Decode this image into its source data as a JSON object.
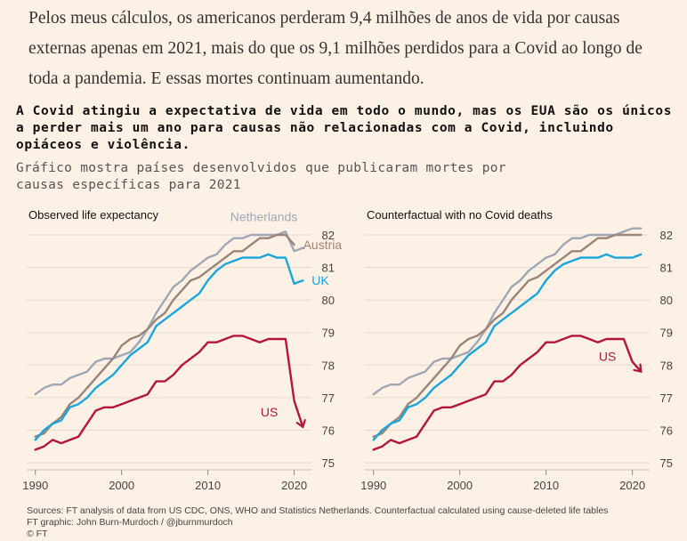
{
  "intro_text": "Pelos meus cálculos, os americanos perderam 9,4 milhões de anos de vida por causas externas apenas em 2021, mais do que os 9,1 milhões perdidos para a Covid ao longo de toda a pandemia. E essas mortes continuam aumentando.",
  "chart_title": "A Covid atingiu a expectativa de vida em todo o mundo, mas os EUA são os únicos a perder mais um ano para causas não relacionadas com a Covid, incluindo opiáceos e violência.",
  "chart_subtitle": "Gráfico mostra países desenvolvidos que publicaram mortes por causas específicas para 2021",
  "footer": {
    "sources": "Sources: FT analysis of data from US CDC, ONS, WHO and Statistics Netherlands. Counterfactual calculated using cause-deleted life tables",
    "graphic": "FT graphic: John Burn-Murdoch / @jburnmurdoch",
    "copyright": "© FT"
  },
  "chart_data": [
    {
      "type": "line",
      "title": "Observed life expectancy",
      "xlim": [
        1989,
        2022
      ],
      "ylim": [
        75,
        82
      ],
      "x_ticks": [
        1990,
        2000,
        2010,
        2020
      ],
      "y_ticks": [
        75,
        76,
        77,
        78,
        79,
        80,
        81,
        82
      ],
      "grid": true,
      "series": [
        {
          "name": "Netherlands",
          "color": "#9fa7b5",
          "label_side": "top",
          "x": [
            1990,
            1991,
            1992,
            1993,
            1994,
            1995,
            1996,
            1997,
            1998,
            1999,
            2000,
            2001,
            2002,
            2003,
            2004,
            2005,
            2006,
            2007,
            2008,
            2009,
            2010,
            2011,
            2012,
            2013,
            2014,
            2015,
            2016,
            2017,
            2018,
            2019,
            2020,
            2021
          ],
          "y": [
            77.1,
            77.3,
            77.4,
            77.4,
            77.6,
            77.7,
            77.8,
            78.1,
            78.2,
            78.2,
            78.3,
            78.4,
            78.7,
            79.1,
            79.6,
            80.0,
            80.4,
            80.6,
            80.9,
            81.1,
            81.3,
            81.4,
            81.7,
            81.9,
            81.9,
            82.0,
            82.0,
            82.0,
            82.0,
            82.1,
            81.5,
            81.6
          ]
        },
        {
          "name": "Austria",
          "color": "#9b8478",
          "label_side": "right",
          "x": [
            1990,
            1991,
            1992,
            1993,
            1994,
            1995,
            1996,
            1997,
            1998,
            1999,
            2000,
            2001,
            2002,
            2003,
            2004,
            2005,
            2006,
            2007,
            2008,
            2009,
            2010,
            2011,
            2012,
            2013,
            2014,
            2015,
            2016,
            2017,
            2018,
            2019,
            2020
          ],
          "y": [
            75.8,
            75.9,
            76.2,
            76.4,
            76.8,
            77.0,
            77.3,
            77.6,
            77.9,
            78.2,
            78.6,
            78.8,
            78.9,
            79.1,
            79.4,
            79.6,
            80.0,
            80.3,
            80.6,
            80.7,
            80.9,
            81.1,
            81.3,
            81.5,
            81.5,
            81.7,
            81.9,
            81.9,
            82.0,
            82.0,
            81.7
          ]
        },
        {
          "name": "UK",
          "color": "#1aa6d9",
          "label_side": "right",
          "x": [
            1990,
            1991,
            1992,
            1993,
            1994,
            1995,
            1996,
            1997,
            1998,
            1999,
            2000,
            2001,
            2002,
            2003,
            2004,
            2005,
            2006,
            2007,
            2008,
            2009,
            2010,
            2011,
            2012,
            2013,
            2014,
            2015,
            2016,
            2017,
            2018,
            2019,
            2020,
            2021
          ],
          "y": [
            75.7,
            76.0,
            76.2,
            76.3,
            76.7,
            76.8,
            77.0,
            77.3,
            77.5,
            77.7,
            78.0,
            78.3,
            78.5,
            78.7,
            79.2,
            79.4,
            79.6,
            79.8,
            80.0,
            80.2,
            80.6,
            80.9,
            81.1,
            81.2,
            81.3,
            81.3,
            81.3,
            81.4,
            81.3,
            81.3,
            80.5,
            80.6
          ]
        },
        {
          "name": "US",
          "color": "#b3163a",
          "label_side": "left",
          "arrow": true,
          "x": [
            1990,
            1991,
            1992,
            1993,
            1994,
            1995,
            1996,
            1997,
            1998,
            1999,
            2000,
            2001,
            2002,
            2003,
            2004,
            2005,
            2006,
            2007,
            2008,
            2009,
            2010,
            2011,
            2012,
            2013,
            2014,
            2015,
            2016,
            2017,
            2018,
            2019,
            2020,
            2021
          ],
          "y": [
            75.4,
            75.5,
            75.7,
            75.6,
            75.7,
            75.8,
            76.2,
            76.6,
            76.7,
            76.7,
            76.8,
            76.9,
            77.0,
            77.1,
            77.5,
            77.5,
            77.7,
            78.0,
            78.2,
            78.4,
            78.7,
            78.7,
            78.8,
            78.9,
            78.9,
            78.8,
            78.7,
            78.8,
            78.8,
            78.8,
            76.9,
            76.1
          ]
        }
      ]
    },
    {
      "type": "line",
      "title": "Counterfactual with no Covid deaths",
      "xlim": [
        1989,
        2022
      ],
      "ylim": [
        75,
        82
      ],
      "x_ticks": [
        1990,
        2000,
        2010,
        2020
      ],
      "y_ticks": [
        75,
        76,
        77,
        78,
        79,
        80,
        81,
        82
      ],
      "grid": true,
      "series": [
        {
          "name": "Netherlands",
          "color": "#9fa7b5",
          "x": [
            1990,
            1991,
            1992,
            1993,
            1994,
            1995,
            1996,
            1997,
            1998,
            1999,
            2000,
            2001,
            2002,
            2003,
            2004,
            2005,
            2006,
            2007,
            2008,
            2009,
            2010,
            2011,
            2012,
            2013,
            2014,
            2015,
            2016,
            2017,
            2018,
            2019,
            2020,
            2021
          ],
          "y": [
            77.1,
            77.3,
            77.4,
            77.4,
            77.6,
            77.7,
            77.8,
            78.1,
            78.2,
            78.2,
            78.3,
            78.4,
            78.7,
            79.1,
            79.6,
            80.0,
            80.4,
            80.6,
            80.9,
            81.1,
            81.3,
            81.4,
            81.7,
            81.9,
            81.9,
            82.0,
            82.0,
            82.0,
            82.0,
            82.1,
            82.2,
            82.2
          ]
        },
        {
          "name": "Austria",
          "color": "#9b8478",
          "x": [
            1990,
            1991,
            1992,
            1993,
            1994,
            1995,
            1996,
            1997,
            1998,
            1999,
            2000,
            2001,
            2002,
            2003,
            2004,
            2005,
            2006,
            2007,
            2008,
            2009,
            2010,
            2011,
            2012,
            2013,
            2014,
            2015,
            2016,
            2017,
            2018,
            2019,
            2020,
            2021
          ],
          "y": [
            75.8,
            75.9,
            76.2,
            76.4,
            76.8,
            77.0,
            77.3,
            77.6,
            77.9,
            78.2,
            78.6,
            78.8,
            78.9,
            79.1,
            79.4,
            79.6,
            80.0,
            80.3,
            80.6,
            80.7,
            80.9,
            81.1,
            81.3,
            81.5,
            81.5,
            81.7,
            81.9,
            81.9,
            82.0,
            82.0,
            82.0,
            82.0
          ]
        },
        {
          "name": "UK",
          "color": "#1aa6d9",
          "x": [
            1990,
            1991,
            1992,
            1993,
            1994,
            1995,
            1996,
            1997,
            1998,
            1999,
            2000,
            2001,
            2002,
            2003,
            2004,
            2005,
            2006,
            2007,
            2008,
            2009,
            2010,
            2011,
            2012,
            2013,
            2014,
            2015,
            2016,
            2017,
            2018,
            2019,
            2020,
            2021
          ],
          "y": [
            75.7,
            76.0,
            76.2,
            76.3,
            76.7,
            76.8,
            77.0,
            77.3,
            77.5,
            77.7,
            78.0,
            78.3,
            78.5,
            78.7,
            79.2,
            79.4,
            79.6,
            79.8,
            80.0,
            80.2,
            80.6,
            80.9,
            81.1,
            81.2,
            81.3,
            81.3,
            81.3,
            81.4,
            81.3,
            81.3,
            81.3,
            81.4
          ]
        },
        {
          "name": "US",
          "color": "#b3163a",
          "label_side": "left",
          "arrow": true,
          "x": [
            1990,
            1991,
            1992,
            1993,
            1994,
            1995,
            1996,
            1997,
            1998,
            1999,
            2000,
            2001,
            2002,
            2003,
            2004,
            2005,
            2006,
            2007,
            2008,
            2009,
            2010,
            2011,
            2012,
            2013,
            2014,
            2015,
            2016,
            2017,
            2018,
            2019,
            2020,
            2021
          ],
          "y": [
            75.4,
            75.5,
            75.7,
            75.6,
            75.7,
            75.8,
            76.2,
            76.6,
            76.7,
            76.7,
            76.8,
            76.9,
            77.0,
            77.1,
            77.5,
            77.5,
            77.7,
            78.0,
            78.2,
            78.4,
            78.7,
            78.7,
            78.8,
            78.9,
            78.9,
            78.8,
            78.7,
            78.8,
            78.8,
            78.8,
            78.1,
            77.8
          ]
        }
      ]
    }
  ]
}
